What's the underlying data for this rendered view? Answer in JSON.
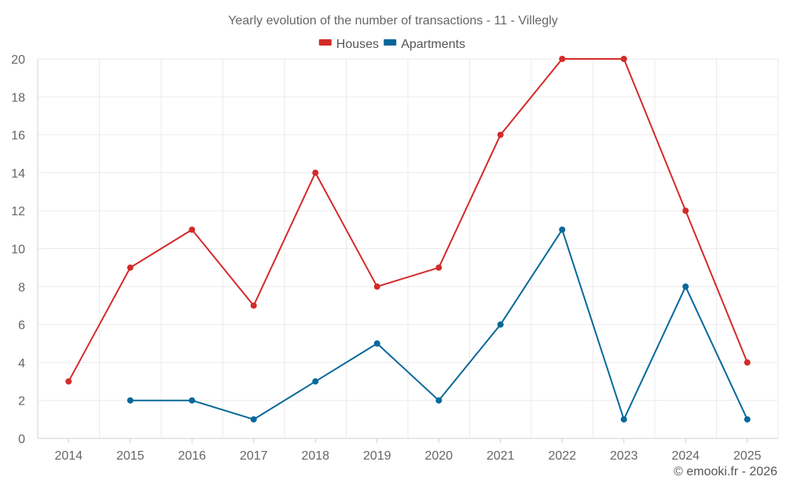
{
  "chart_data": {
    "type": "line",
    "title": "Yearly evolution of the number of transactions - 11 - Villegly",
    "categories": [
      "2014",
      "2015",
      "2016",
      "2017",
      "2018",
      "2019",
      "2020",
      "2021",
      "2022",
      "2023",
      "2024",
      "2025"
    ],
    "ylim": [
      0,
      20
    ],
    "yticks": [
      0,
      2,
      4,
      6,
      8,
      10,
      12,
      14,
      16,
      18,
      20
    ],
    "grid": true,
    "legend_position": "top-center",
    "series": [
      {
        "name": "Houses",
        "color": "#d42a2a",
        "values": [
          3,
          9,
          11,
          7,
          14,
          8,
          9,
          16,
          20,
          20,
          12,
          4
        ]
      },
      {
        "name": "Apartments",
        "color": "#07689a",
        "values": [
          null,
          2,
          2,
          1,
          3,
          5,
          2,
          6,
          11,
          1,
          8,
          1
        ]
      }
    ]
  },
  "credit": "© emooki.fr - 2026"
}
